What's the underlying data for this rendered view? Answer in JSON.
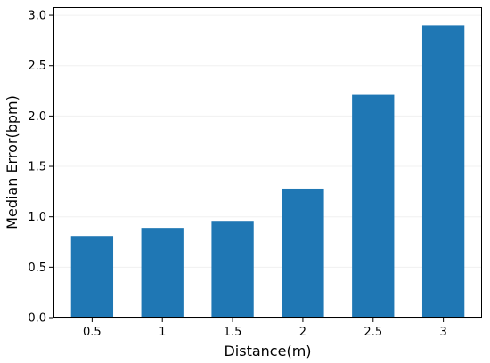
{
  "chart_data": {
    "type": "bar",
    "title": "",
    "xlabel": "Distance(m)",
    "ylabel": "Median Error(bpm)",
    "categories": [
      "0.5",
      "1",
      "1.5",
      "2",
      "2.5",
      "3"
    ],
    "values": [
      0.81,
      0.89,
      0.96,
      1.28,
      2.21,
      2.9
    ],
    "ylim": [
      0,
      3.08
    ],
    "yticks": [
      "0.0",
      "0.5",
      "1.0",
      "1.5",
      "2.0",
      "2.5",
      "3.0"
    ],
    "grid": true,
    "bar_color": "#1f77b4",
    "grid_color": "#f0f0f0"
  }
}
